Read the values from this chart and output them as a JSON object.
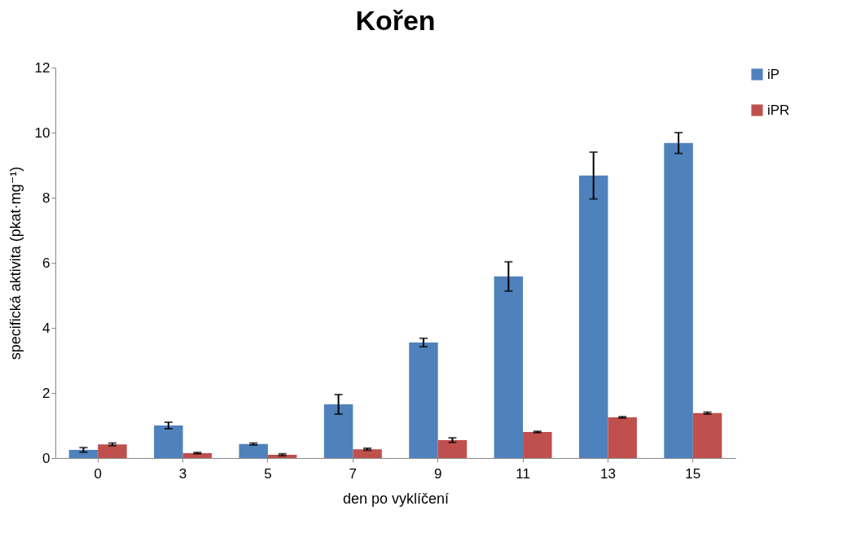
{
  "chart_data": {
    "type": "bar",
    "title": "Kořen",
    "xlabel": "den po vyklíčení",
    "ylabel": "specifická aktivita (pkat·mg⁻¹)",
    "categories": [
      "0",
      "3",
      "5",
      "7",
      "9",
      "11",
      "13",
      "15"
    ],
    "series": [
      {
        "name": "iP",
        "color": "#4f81bd",
        "values": [
          0.25,
          1.0,
          0.43,
          1.65,
          3.55,
          5.58,
          8.68,
          9.68
        ],
        "errors": [
          0.07,
          0.1,
          0.03,
          0.3,
          0.13,
          0.45,
          0.72,
          0.32
        ]
      },
      {
        "name": "iPR",
        "color": "#c0504d",
        "values": [
          0.42,
          0.15,
          0.1,
          0.27,
          0.55,
          0.8,
          1.25,
          1.38
        ],
        "errors": [
          0.04,
          0.02,
          0.03,
          0.03,
          0.07,
          0.02,
          0.02,
          0.03
        ]
      }
    ],
    "ylim": [
      0,
      12
    ],
    "yticks": [
      0,
      2,
      4,
      6,
      8,
      10,
      12
    ],
    "grid": false,
    "legend": "right"
  }
}
